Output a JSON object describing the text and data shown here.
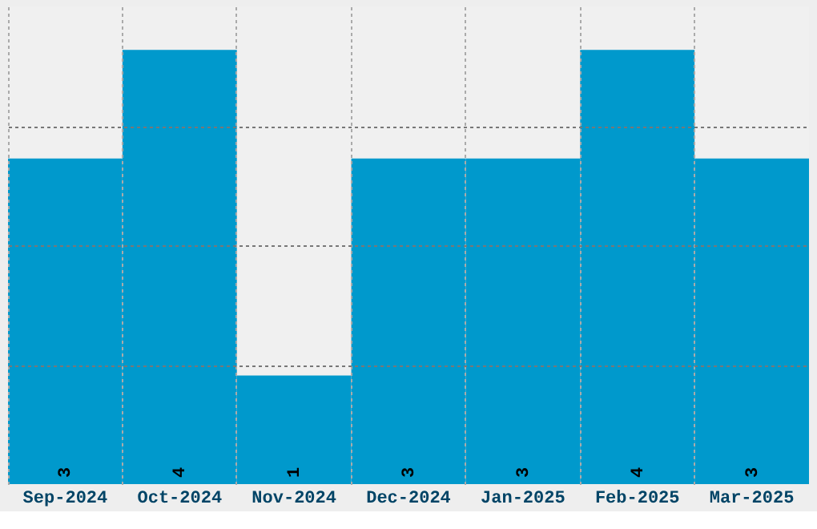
{
  "chart_data": {
    "type": "bar",
    "categories": [
      "Sep-2024",
      "Oct-2024",
      "Nov-2024",
      "Dec-2024",
      "Jan-2025",
      "Feb-2025",
      "Mar-2025"
    ],
    "values": [
      3,
      4,
      1,
      3,
      3,
      4,
      3
    ],
    "color": "#0099cc",
    "data_labels": true,
    "ylim": [
      0,
      4.4
    ],
    "yticks": [
      {
        "value": 1.1,
        "label": null
      },
      {
        "value": 2.2,
        "label": null
      },
      {
        "value": 3.3,
        "label": null
      }
    ],
    "tick_labels": "x",
    "grid": true
  }
}
